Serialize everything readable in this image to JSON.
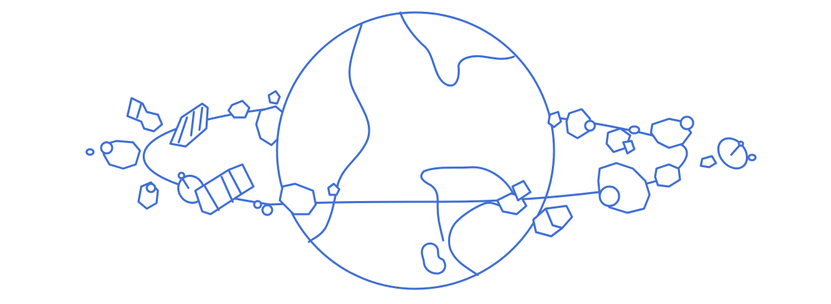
{
  "illustration": {
    "subject": "globe-with-orbiting-space-debris",
    "stroke_color": "#3f6fd6",
    "background_color": "#ffffff"
  }
}
